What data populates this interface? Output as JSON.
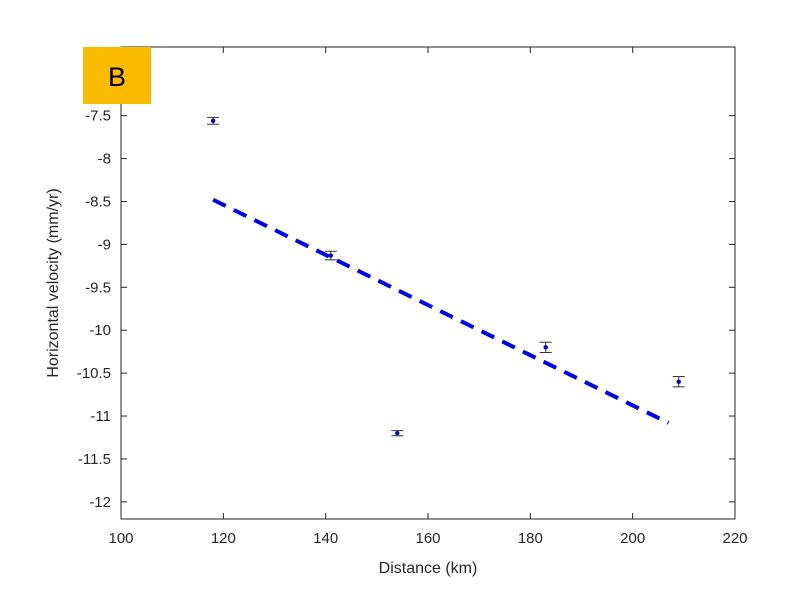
{
  "panel_label": {
    "text": "B",
    "background_color": "#FBBB00"
  },
  "chart_data": {
    "type": "scatter",
    "xlabel": "Distance (km)",
    "ylabel": "Horizontal velocity (mm/yr)",
    "xlim": [
      100,
      220
    ],
    "ylim": [
      -12.2,
      -6.7
    ],
    "x_ticks": [
      100,
      120,
      140,
      160,
      180,
      200,
      220
    ],
    "y_ticks": [
      -12,
      -11.5,
      -11,
      -10.5,
      -10,
      -9.5,
      -9,
      -8.5,
      -8,
      -7.5
    ],
    "grid": false,
    "point_color": "#0000C8",
    "points": [
      {
        "x": 118,
        "y": -7.56,
        "err": 0.04
      },
      {
        "x": 141,
        "y": -9.13,
        "err": 0.05
      },
      {
        "x": 154,
        "y": -11.2,
        "err": 0.03
      },
      {
        "x": 183,
        "y": -10.2,
        "err": 0.06
      },
      {
        "x": 209,
        "y": -10.6,
        "err": 0.06
      }
    ],
    "fit_line": {
      "style": "dashed",
      "color": "#0000E6",
      "x": [
        118,
        207
      ],
      "y": [
        -8.48,
        -11.08
      ]
    }
  }
}
